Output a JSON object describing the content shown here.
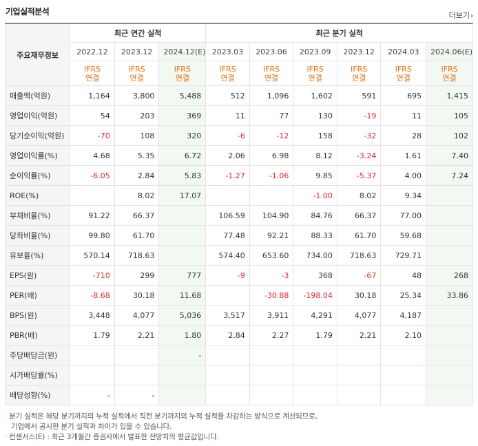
{
  "title": "기업실적분석",
  "more_label": "더보기",
  "corner_label": "주요재무정보",
  "annual_header": "최근 연간 실적",
  "quarter_header": "최근 분기 실적",
  "annual_periods": [
    "2022.12",
    "2023.12",
    "2024.12(E)"
  ],
  "quarter_periods": [
    "2023.03",
    "2023.06",
    "2023.09",
    "2023.12",
    "2024.03",
    "2024.06(E)"
  ],
  "basis_line1": "IFRS",
  "basis_line2": "연결",
  "rows": [
    {
      "label": "매출액(억원)",
      "values": [
        "1,164",
        "3,800",
        "5,488",
        "512",
        "1,096",
        "1,602",
        "591",
        "695",
        "1,415"
      ]
    },
    {
      "label": "영업이익(억원)",
      "values": [
        "54",
        "203",
        "369",
        "11",
        "77",
        "130",
        "-19",
        "11",
        "105"
      ]
    },
    {
      "label": "당기순이익(억원)",
      "values": [
        "-70",
        "108",
        "320",
        "-6",
        "-12",
        "158",
        "-32",
        "28",
        "102"
      ]
    },
    {
      "label": "영업이익률(%)",
      "values": [
        "4.68",
        "5.35",
        "6.72",
        "2.06",
        "6.98",
        "8.12",
        "-3.24",
        "1.61",
        "7.40"
      ]
    },
    {
      "label": "순이익률(%)",
      "values": [
        "-6.05",
        "2.84",
        "5.83",
        "-1.27",
        "-1.06",
        "9.85",
        "-5.37",
        "4.00",
        "7.24"
      ]
    },
    {
      "label": "ROE(%)",
      "values": [
        "",
        "8.02",
        "17.07",
        "",
        "",
        "-1.00",
        "8.02",
        "9.34",
        ""
      ]
    },
    {
      "label": "부채비율(%)",
      "values": [
        "91.22",
        "66.37",
        "",
        "106.59",
        "104.90",
        "84.76",
        "66.37",
        "77.00",
        ""
      ]
    },
    {
      "label": "당좌비율(%)",
      "values": [
        "99.80",
        "61.70",
        "",
        "77.48",
        "92.21",
        "88.33",
        "61.70",
        "59.68",
        ""
      ]
    },
    {
      "label": "유보율(%)",
      "values": [
        "570.14",
        "718.63",
        "",
        "574.40",
        "653.60",
        "734.00",
        "718.63",
        "729.71",
        ""
      ]
    },
    {
      "label": "EPS(원)",
      "values": [
        "-710",
        "299",
        "777",
        "-9",
        "-3",
        "368",
        "-67",
        "48",
        "268"
      ]
    },
    {
      "label": "PER(배)",
      "values": [
        "-8.68",
        "30.18",
        "11.68",
        "",
        "-30.88",
        "-198.04",
        "30.18",
        "25.34",
        "33.86"
      ]
    },
    {
      "label": "BPS(원)",
      "values": [
        "3,448",
        "4,077",
        "5,036",
        "3,517",
        "3,911",
        "4,291",
        "4,077",
        "4,187",
        ""
      ]
    },
    {
      "label": "PBR(배)",
      "values": [
        "1.79",
        "2.21",
        "1.80",
        "2.84",
        "2.27",
        "1.79",
        "2.21",
        "2.10",
        ""
      ]
    },
    {
      "label": "주당배당금(원)",
      "values": [
        "",
        "",
        "-",
        "",
        "",
        "",
        "",
        "",
        ""
      ]
    },
    {
      "label": "시가배당률(%)",
      "values": [
        "",
        "",
        "",
        "",
        "",
        "",
        "",
        "",
        ""
      ]
    },
    {
      "label": "배당성향(%)",
      "values": [
        "-",
        "-",
        "",
        "",
        "",
        "",
        "",
        "",
        ""
      ]
    }
  ],
  "notes": [
    "분기 실적은 해당 분기까지의 누적 실적에서 직전 분기까지의 누적 실적을 차감하는 방식으로 계산되므로,",
    "기업에서 공시한 분기 실적과 차이가 있을 수 있습니다.",
    "컨센서스(E) : 최근 3개월간 증권사에서 발표한 전망치의 평균값입니다."
  ],
  "colors": {
    "negative": "#e0242a",
    "ifrs": "#e8700a",
    "estimate_bg": "#f2f9f2",
    "label_bg": "#f5f5f5"
  }
}
